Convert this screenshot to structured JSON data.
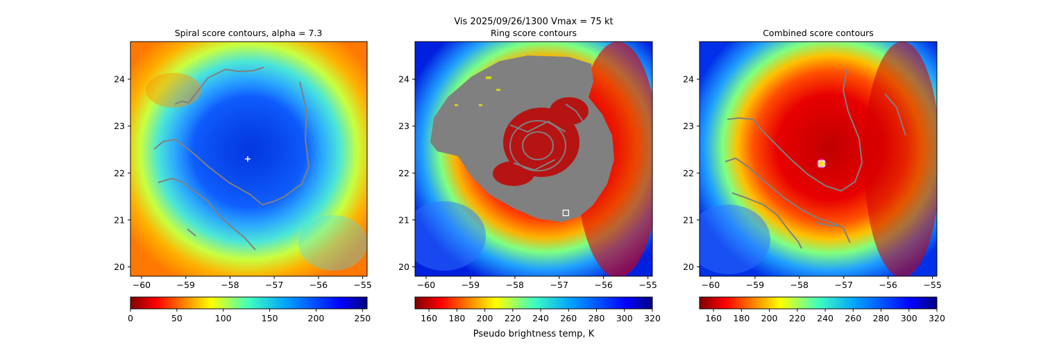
{
  "figure": {
    "suptitle_line1": "Vis  2025/09/26/1300    Vmax = 75 kt",
    "colorbar_label": "Pseudo brightness temp, K"
  },
  "chart_data": [
    {
      "type": "heatmap",
      "title": "Spiral score contours, alpha =  7.3",
      "x_ticks": [
        -60,
        -59,
        -58,
        -57,
        -56,
        -55
      ],
      "y_ticks": [
        20,
        21,
        22,
        23,
        24
      ],
      "xlim": [
        -60.25,
        -54.9
      ],
      "ylim": [
        19.8,
        24.8
      ],
      "center_marker": {
        "lon": -57.6,
        "lat": 22.3,
        "symbol": "+"
      },
      "colorbar": {
        "cmap": "jet_r",
        "range": [
          0,
          255
        ],
        "ticks": [
          0,
          50,
          100,
          150,
          200,
          250
        ]
      }
    },
    {
      "type": "heatmap",
      "title": "Ring score contours",
      "x_ticks": [
        -60,
        -59,
        -58,
        -57,
        -56,
        -55
      ],
      "y_ticks": [
        20,
        21,
        22,
        23,
        24
      ],
      "xlim": [
        -60.25,
        -54.9
      ],
      "ylim": [
        19.8,
        24.8
      ],
      "center_marker": {
        "lon": -56.85,
        "lat": 21.15,
        "symbol": "square"
      },
      "colorbar": {
        "cmap": "jet_r",
        "range": [
          150,
          320
        ],
        "ticks": [
          160,
          180,
          200,
          220,
          240,
          260,
          280,
          300,
          320
        ]
      }
    },
    {
      "type": "heatmap",
      "title": "Combined score contours",
      "x_ticks": [
        -60,
        -59,
        -58,
        -57,
        -56,
        -55
      ],
      "y_ticks": [
        20,
        21,
        22,
        23,
        24
      ],
      "xlim": [
        -60.25,
        -54.9
      ],
      "ylim": [
        19.8,
        24.8
      ],
      "center_marker": {
        "lon": -57.5,
        "lat": 22.2,
        "symbol": "square+circle"
      },
      "colorbar": {
        "cmap": "jet_r",
        "range": [
          150,
          320
        ],
        "ticks": [
          160,
          180,
          200,
          220,
          240,
          260,
          280,
          300,
          320
        ]
      }
    }
  ]
}
